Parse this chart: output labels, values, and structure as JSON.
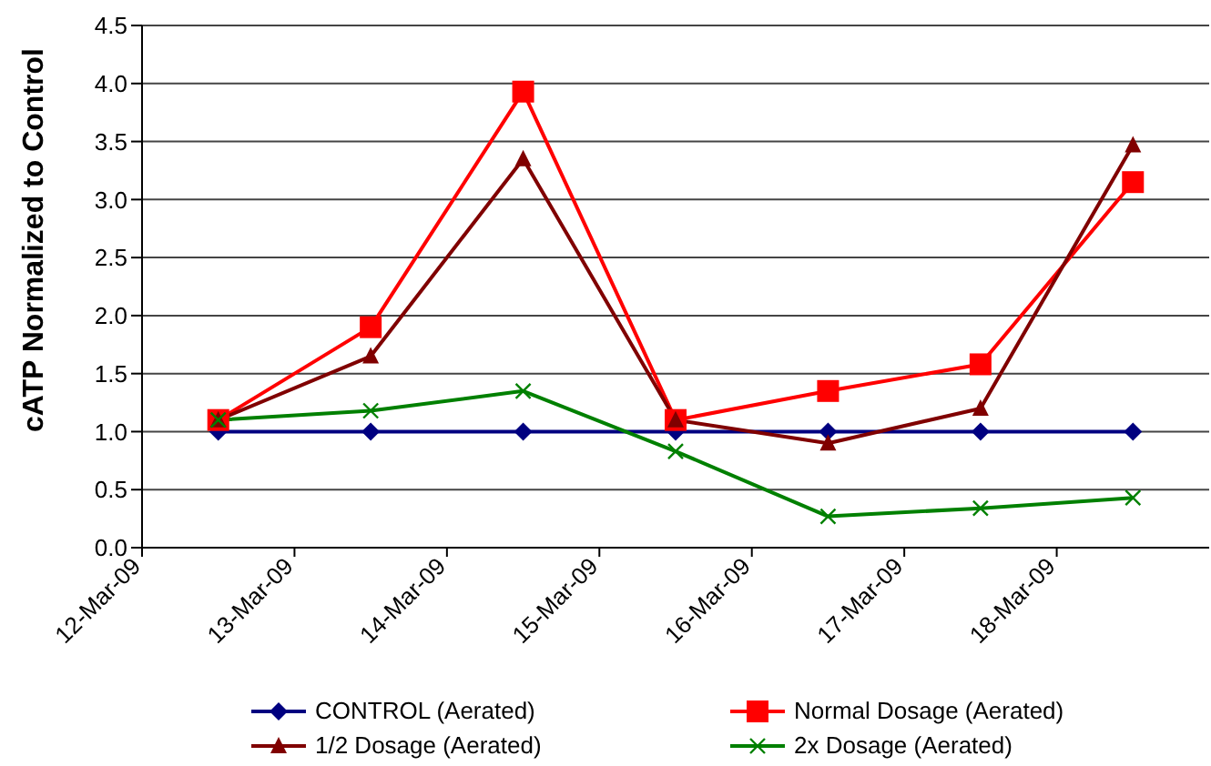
{
  "chart_data": {
    "type": "line",
    "ylabel": "cATP Normalized to Control",
    "x": [
      "--03-12T12:00",
      "--03-13T12:00",
      "--03-14T12:00",
      "--03-15T12:00",
      "--03-16T12:00",
      "--03-17T12:00",
      "--03-18T12:00"
    ],
    "xlim": [
      "--03-12",
      "--03-19"
    ],
    "xticks": [
      {
        "value": "--03-12",
        "label": "12-Mar-09"
      },
      {
        "value": "--03-13",
        "label": "13-Mar-09"
      },
      {
        "value": "--03-14",
        "label": "14-Mar-09"
      },
      {
        "value": "--03-15",
        "label": "15-Mar-09"
      },
      {
        "value": "--03-16",
        "label": "16-Mar-09"
      },
      {
        "value": "--03-17",
        "label": "17-Mar-09"
      },
      {
        "value": "--03-18",
        "label": "18-Mar-09"
      }
    ],
    "ylim": [
      0,
      4.5
    ],
    "yticks": [
      {
        "value": 0,
        "label": "0.0"
      },
      {
        "value": 0.5,
        "label": "0.5"
      },
      {
        "value": 1,
        "label": "1.0"
      },
      {
        "value": 1.5,
        "label": "1.5"
      },
      {
        "value": 2,
        "label": "2.0"
      },
      {
        "value": 2.5,
        "label": "2.5"
      },
      {
        "value": 3,
        "label": "3.0"
      },
      {
        "value": 3.5,
        "label": "3.5"
      },
      {
        "value": 4,
        "label": "4.0"
      },
      {
        "value": 4.5,
        "label": "4.5"
      }
    ],
    "grid": "y",
    "legend": "bottom",
    "line_style": "solid",
    "series": [
      {
        "name": "CONTROL (Aerated)",
        "color": "#000080",
        "marker": "diamond",
        "values": [
          1,
          1,
          1,
          1,
          1,
          1,
          1
        ]
      },
      {
        "name": "Normal Dosage (Aerated)",
        "color": "#ff0000",
        "marker": "square",
        "values": [
          1.1,
          1.9,
          3.93,
          1.1,
          1.35,
          1.58,
          3.15
        ]
      },
      {
        "name": "1/2 Dosage (Aerated)",
        "color": "#800000",
        "marker": "triangle",
        "values": [
          1.1,
          1.65,
          3.35,
          1.1,
          0.9,
          1.2,
          3.47
        ]
      },
      {
        "name": "2x Dosage (Aerated)",
        "color": "#008000",
        "marker": "cross",
        "values": [
          1.1,
          1.18,
          1.35,
          0.83,
          0.27,
          0.34,
          0.43
        ]
      }
    ]
  }
}
